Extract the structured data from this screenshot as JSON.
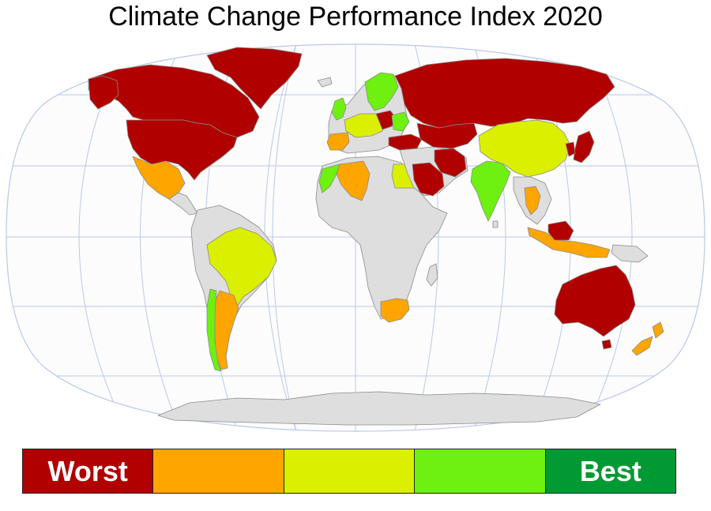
{
  "title": "Climate Change Performance Index 2020",
  "legend": {
    "categories": [
      {
        "label": "Worst",
        "color": "#b00000"
      },
      {
        "label": "",
        "color": "#ffa500"
      },
      {
        "label": "",
        "color": "#dbef00"
      },
      {
        "label": "",
        "color": "#6ef010"
      },
      {
        "label": "Best",
        "color": "#009933"
      }
    ]
  },
  "colors": {
    "ocean": "#fcfcfc",
    "graticule": "#b8c8ea",
    "no_data": "#dedede",
    "border": "#8a8a8a"
  },
  "regions": [
    {
      "name": "greenland",
      "category": 0
    },
    {
      "name": "canada",
      "category": 0
    },
    {
      "name": "usa",
      "category": 0
    },
    {
      "name": "mexico",
      "category": 1
    },
    {
      "name": "brazil",
      "category": 2
    },
    {
      "name": "argentina",
      "category": 1
    },
    {
      "name": "chile",
      "category": 3
    },
    {
      "name": "russia",
      "category": 0
    },
    {
      "name": "china",
      "category": 2
    },
    {
      "name": "india",
      "category": 3
    },
    {
      "name": "australia",
      "category": 0
    },
    {
      "name": "south-africa",
      "category": 1
    },
    {
      "name": "algeria",
      "category": 1
    },
    {
      "name": "egypt",
      "category": 2
    },
    {
      "name": "saudi-arabia",
      "category": 0
    },
    {
      "name": "iran",
      "category": 0
    },
    {
      "name": "indonesia",
      "category": 1
    },
    {
      "name": "new-zealand",
      "category": 1
    },
    {
      "name": "japan",
      "category": 0
    },
    {
      "name": "sweden",
      "category": 3
    }
  ]
}
